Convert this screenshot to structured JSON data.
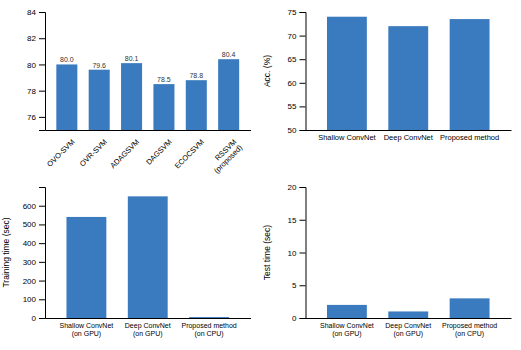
{
  "chart_data": [
    {
      "type": "bar",
      "categories": [
        "OVO-SVM",
        "OVR-SVM",
        "ADAGSVM",
        "DAGSVM",
        "ECOCSVM",
        "RSSVM\n(proposed)"
      ],
      "values": [
        80.0,
        79.6,
        80.1,
        78.5,
        78.8,
        80.4
      ],
      "value_labels": [
        "80.0",
        "79.6",
        "80.1",
        "78.5",
        "78.8",
        "80.4"
      ],
      "data_labels": true,
      "ylim": [
        75,
        84
      ],
      "yticks": [
        76,
        78,
        80,
        82,
        84
      ],
      "color": "#3a7bbf"
    },
    {
      "type": "bar",
      "categories": [
        "Shallow ConvNet",
        "Deep ConvNet",
        "Proposed method"
      ],
      "values": [
        74.0,
        72.0,
        73.5
      ],
      "ylim": [
        50,
        75
      ],
      "yticks": [
        50,
        55,
        60,
        65,
        70,
        75
      ],
      "ylabel": "Acc. (%)",
      "color": "#3a7bbf"
    },
    {
      "type": "bar",
      "categories": [
        "Shallow ConvNet\n(on GPU)",
        "Deep ConvNet\n(on GPU)",
        "Proposed method\n(on CPU)"
      ],
      "values": [
        540,
        650,
        5
      ],
      "ylim": [
        0,
        700
      ],
      "yticks": [
        0,
        100,
        200,
        300,
        400,
        500,
        600
      ],
      "ylabel": "Training time (sec)",
      "color": "#3a7bbf"
    },
    {
      "type": "bar",
      "categories": [
        "Shallow ConvNet\n(on GPU)",
        "Deep ConvNet\n(on GPU)",
        "Proposed method\n(on CPU)"
      ],
      "values": [
        2.0,
        1.0,
        3.0
      ],
      "ylim": [
        0,
        20
      ],
      "yticks": [
        0,
        5,
        10,
        15,
        20
      ],
      "ylabel": "Test time (sec)",
      "color": "#3a7bbf"
    }
  ]
}
